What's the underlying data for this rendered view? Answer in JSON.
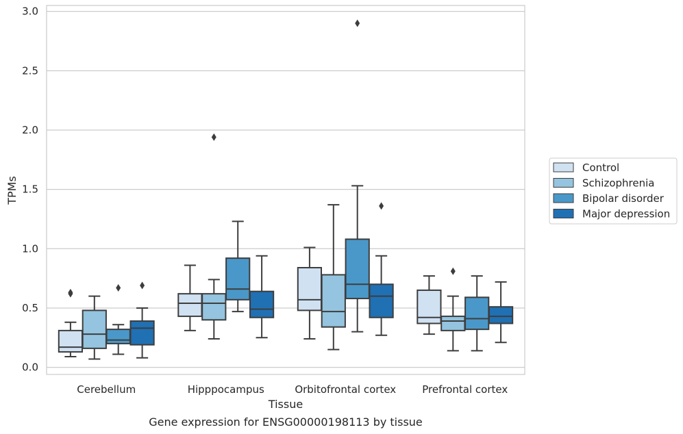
{
  "chart_data": {
    "type": "box",
    "title": "Gene expression for ENSG00000198113 by tissue",
    "xlabel": "Tissue",
    "ylabel": "TPMs",
    "ylim": [
      -0.06,
      3.05
    ],
    "yticks": [
      "0.0",
      "0.5",
      "1.0",
      "1.5",
      "2.0",
      "2.5",
      "3.0"
    ],
    "grid": "horizontal",
    "legend_position": "right",
    "categories": [
      "Cerebellum",
      "Hipppocampus",
      "Orbitofrontal cortex",
      "Prefrontal cortex"
    ],
    "series": [
      {
        "name": "Control",
        "color": "#d0e1f2",
        "boxes": [
          {
            "whisker_low": 0.09,
            "q1": 0.13,
            "median": 0.17,
            "q3": 0.31,
            "whisker_high": 0.38,
            "outliers": [
              0.62,
              0.63
            ]
          },
          {
            "whisker_low": 0.31,
            "q1": 0.43,
            "median": 0.54,
            "q3": 0.62,
            "whisker_high": 0.86,
            "outliers": []
          },
          {
            "whisker_low": 0.24,
            "q1": 0.48,
            "median": 0.57,
            "q3": 0.84,
            "whisker_high": 1.01,
            "outliers": []
          },
          {
            "whisker_low": 0.28,
            "q1": 0.37,
            "median": 0.42,
            "q3": 0.65,
            "whisker_high": 0.77,
            "outliers": []
          }
        ]
      },
      {
        "name": "Schizophrenia",
        "color": "#94c4df",
        "boxes": [
          {
            "whisker_low": 0.07,
            "q1": 0.16,
            "median": 0.28,
            "q3": 0.48,
            "whisker_high": 0.6,
            "outliers": []
          },
          {
            "whisker_low": 0.24,
            "q1": 0.4,
            "median": 0.54,
            "q3": 0.62,
            "whisker_high": 0.74,
            "outliers": [
              1.94
            ]
          },
          {
            "whisker_low": 0.15,
            "q1": 0.34,
            "median": 0.47,
            "q3": 0.78,
            "whisker_high": 1.37,
            "outliers": []
          },
          {
            "whisker_low": 0.14,
            "q1": 0.31,
            "median": 0.39,
            "q3": 0.43,
            "whisker_high": 0.6,
            "outliers": [
              0.81
            ]
          }
        ]
      },
      {
        "name": "Bipolar disorder",
        "color": "#4a98c9",
        "boxes": [
          {
            "whisker_low": 0.11,
            "q1": 0.2,
            "median": 0.23,
            "q3": 0.32,
            "whisker_high": 0.36,
            "outliers": [
              0.67
            ]
          },
          {
            "whisker_low": 0.47,
            "q1": 0.57,
            "median": 0.66,
            "q3": 0.92,
            "whisker_high": 1.23,
            "outliers": []
          },
          {
            "whisker_low": 0.3,
            "q1": 0.58,
            "median": 0.7,
            "q3": 1.08,
            "whisker_high": 1.53,
            "outliers": [
              2.9
            ]
          },
          {
            "whisker_low": 0.14,
            "q1": 0.32,
            "median": 0.41,
            "q3": 0.59,
            "whisker_high": 0.77,
            "outliers": []
          }
        ]
      },
      {
        "name": "Major depression",
        "color": "#2070b4",
        "boxes": [
          {
            "whisker_low": 0.08,
            "q1": 0.19,
            "median": 0.33,
            "q3": 0.39,
            "whisker_high": 0.5,
            "outliers": [
              0.69
            ]
          },
          {
            "whisker_low": 0.25,
            "q1": 0.42,
            "median": 0.49,
            "q3": 0.64,
            "whisker_high": 0.94,
            "outliers": []
          },
          {
            "whisker_low": 0.27,
            "q1": 0.42,
            "median": 0.6,
            "q3": 0.7,
            "whisker_high": 0.94,
            "outliers": [
              1.36
            ]
          },
          {
            "whisker_low": 0.21,
            "q1": 0.37,
            "median": 0.43,
            "q3": 0.51,
            "whisker_high": 0.72,
            "outliers": []
          }
        ]
      }
    ]
  }
}
